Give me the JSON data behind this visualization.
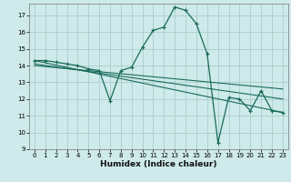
{
  "title": "",
  "xlabel": "Humidex (Indice chaleur)",
  "bg_color": "#ceeaea",
  "grid_color": "#b0d0d0",
  "line_color": "#1a6b5a",
  "xlim": [
    -0.5,
    23.5
  ],
  "ylim": [
    9,
    17.7
  ],
  "yticks": [
    9,
    10,
    11,
    12,
    13,
    14,
    15,
    16,
    17
  ],
  "xticks": [
    0,
    1,
    2,
    3,
    4,
    5,
    6,
    7,
    8,
    9,
    10,
    11,
    12,
    13,
    14,
    15,
    16,
    17,
    18,
    19,
    20,
    21,
    22,
    23
  ],
  "main_x": [
    0,
    1,
    2,
    3,
    4,
    5,
    6,
    7,
    8,
    9,
    10,
    11,
    12,
    13,
    14,
    15,
    16,
    17,
    18,
    19,
    20,
    21,
    22,
    23
  ],
  "main_y": [
    14.3,
    14.3,
    14.2,
    14.1,
    14.0,
    13.8,
    13.7,
    11.9,
    13.7,
    13.9,
    15.1,
    16.1,
    16.3,
    17.5,
    17.3,
    16.5,
    14.7,
    9.4,
    12.1,
    12.0,
    11.3,
    12.5,
    11.3,
    11.2
  ],
  "trend1_x": [
    0,
    23
  ],
  "trend1_y": [
    14.3,
    11.2
  ],
  "trend2_x": [
    0,
    23
  ],
  "trend2_y": [
    14.1,
    12.0
  ],
  "trend3_x": [
    0,
    23
  ],
  "trend3_y": [
    14.0,
    12.6
  ]
}
